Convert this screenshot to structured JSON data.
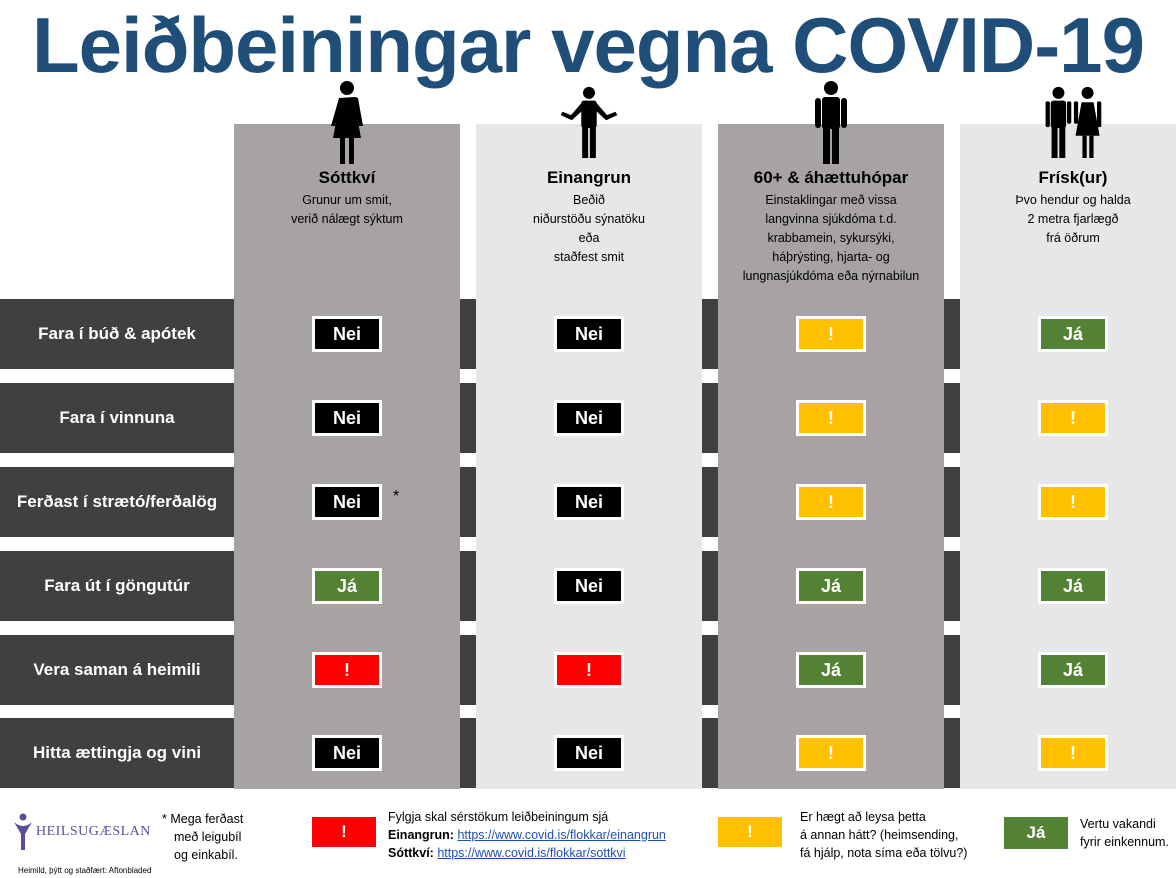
{
  "title": "Leiðbeiningar vegna COVID-19",
  "columns": [
    {
      "heading": "Sóttkví",
      "lines": [
        "Grunur um smit,",
        "verið nálægt sýktum"
      ],
      "figure": "woman-icon"
    },
    {
      "heading": "Einangrun",
      "lines": [
        "Beðið",
        "niðurstöðu sýnatöku",
        "eða",
        "staðfest smit"
      ],
      "figure": "shrugging-man-icon"
    },
    {
      "heading": "60+ & áhættuhópar",
      "lines": [
        "Einstaklingar með vissa",
        "langvinna sjúkdóma t.d.",
        "krabbamein, sykursýki,",
        "háþrýsting, hjarta- og",
        "lungnasjúkdóma eða nýrnabilun"
      ],
      "figure": "man-icon"
    },
    {
      "heading": "Frísk(ur)",
      "lines": [
        "Þvo hendur og halda",
        "2 metra fjarlægð",
        "frá öðrum"
      ],
      "figure": "couple-icon"
    }
  ],
  "rows": [
    {
      "label": "Fara í búð & apótek",
      "cells": [
        {
          "text": "Nei",
          "type": "nei"
        },
        {
          "text": "Nei",
          "type": "nei"
        },
        {
          "text": "!",
          "type": "yellow"
        },
        {
          "text": "Já",
          "type": "ja"
        }
      ]
    },
    {
      "label": "Fara í vinnuna",
      "cells": [
        {
          "text": "Nei",
          "type": "nei"
        },
        {
          "text": "Nei",
          "type": "nei"
        },
        {
          "text": "!",
          "type": "yellow"
        },
        {
          "text": "!",
          "type": "yellow"
        }
      ]
    },
    {
      "label": "Ferðast í strætó/ferðalög",
      "cells": [
        {
          "text": "Nei",
          "type": "nei"
        },
        {
          "text": "Nei",
          "type": "nei"
        },
        {
          "text": "!",
          "type": "yellow"
        },
        {
          "text": "!",
          "type": "yellow"
        }
      ]
    },
    {
      "label": "Fara út í göngutúr",
      "cells": [
        {
          "text": "Já",
          "type": "ja"
        },
        {
          "text": "Nei",
          "type": "nei"
        },
        {
          "text": "Já",
          "type": "ja"
        },
        {
          "text": "Já",
          "type": "ja"
        }
      ]
    },
    {
      "label": "Vera saman á heimili",
      "cells": [
        {
          "text": "!",
          "type": "red"
        },
        {
          "text": "!",
          "type": "red"
        },
        {
          "text": "Já",
          "type": "ja"
        },
        {
          "text": "Já",
          "type": "ja"
        }
      ]
    },
    {
      "label": "Hitta ættingja og vini",
      "cells": [
        {
          "text": "Nei",
          "type": "nei"
        },
        {
          "text": "Nei",
          "type": "nei"
        },
        {
          "text": "!",
          "type": "yellow"
        },
        {
          "text": "!",
          "type": "yellow"
        }
      ]
    }
  ],
  "asterisk": "*",
  "legend": {
    "logo_text": "HEILSUGÆSLAN",
    "asterisk_note": [
      "* Mega ferðast",
      "með leigubíl",
      "og einkabíl."
    ],
    "red_symbol": "!",
    "red_text_line1": "Fylgja skal sérstökum leiðbeiningum sjá",
    "red_label_1": "Einangrun:",
    "red_link_1": "https://www.covid.is/flokkar/einangrun",
    "red_label_2": "Sóttkví:",
    "red_link_2": "https://www.covid.is/flokkar/sottkvi",
    "yellow_symbol": "!",
    "yellow_text": [
      "Er hægt að leysa þetta",
      "á annan hátt? (heimsending,",
      "fá hjálp, nota síma eða tölvu?)"
    ],
    "green_symbol": "Já",
    "green_text": [
      "Vertu vakandi",
      "fyrir einkennum."
    ],
    "source": "Heimild, þýtt og staðfært: Aftonbladed"
  },
  "colors": {
    "title": "#1f4e79",
    "row_band": "#404040",
    "nei": "#000000",
    "ja": "#548235",
    "yellow": "#ffc000",
    "red": "#ff0000"
  }
}
